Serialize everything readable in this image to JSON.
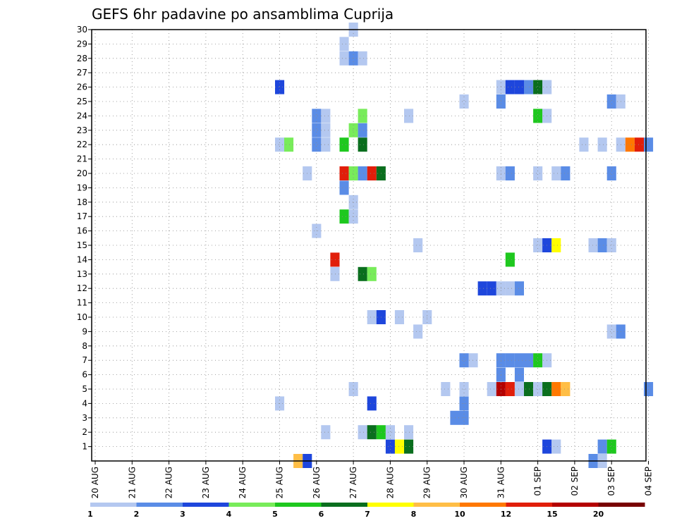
{
  "chart_data": {
    "type": "heatmap",
    "title": "GEFS 6hr padavine po ansamblima Cuprija",
    "xlabel": "",
    "ylabel": "",
    "x_tick_labels": [
      "20 AUG",
      "21 AUG",
      "22 AUG",
      "23 AUG",
      "24 AUG",
      "25 AUG",
      "26 AUG",
      "27 AUG",
      "28 AUG",
      "29 AUG",
      "30 AUG",
      "31 AUG",
      "01 SEP",
      "02 SEP",
      "03 SEP",
      "04 SEP"
    ],
    "y_tick_labels": [
      "1",
      "2",
      "3",
      "4",
      "5",
      "6",
      "7",
      "8",
      "9",
      "10",
      "11",
      "12",
      "13",
      "14",
      "15",
      "16",
      "17",
      "18",
      "19",
      "20",
      "21",
      "22",
      "23",
      "24",
      "25",
      "26",
      "27",
      "28",
      "29",
      "30"
    ],
    "xlim_days": [
      0,
      15
    ],
    "ylim_members": [
      0,
      30
    ],
    "grid": true,
    "colorbar": {
      "labels": [
        "1",
        "2",
        "3",
        "4",
        "5",
        "6",
        "7",
        "8",
        "10",
        "12",
        "15",
        "20"
      ],
      "colors": [
        "#b4c8f0",
        "#5a8ce6",
        "#1e46dc",
        "#78ec5a",
        "#1ec81e",
        "#0a6e1e",
        "#ffff00",
        "#ffbe46",
        "#ff7800",
        "#e11e0a",
        "#b40000",
        "#780000"
      ]
    },
    "cells": [
      [
        7.0,
        30,
        1
      ],
      [
        6.75,
        29,
        1
      ],
      [
        6.75,
        28,
        1
      ],
      [
        7.0,
        28,
        2
      ],
      [
        7.25,
        28,
        1
      ],
      [
        5.0,
        26,
        3
      ],
      [
        11.0,
        26,
        1
      ],
      [
        11.25,
        26,
        3
      ],
      [
        11.5,
        26,
        3
      ],
      [
        11.75,
        26,
        2
      ],
      [
        12.0,
        26,
        6
      ],
      [
        12.25,
        26,
        1
      ],
      [
        10.0,
        25,
        1
      ],
      [
        11.0,
        25,
        2
      ],
      [
        14.0,
        25,
        2
      ],
      [
        14.25,
        25,
        1
      ],
      [
        6.0,
        24,
        2
      ],
      [
        6.25,
        24,
        1
      ],
      [
        7.25,
        24,
        4
      ],
      [
        8.5,
        24,
        1
      ],
      [
        12.0,
        24,
        5
      ],
      [
        12.25,
        24,
        1
      ],
      [
        6.0,
        23,
        2
      ],
      [
        6.25,
        23,
        1
      ],
      [
        7.0,
        23,
        4
      ],
      [
        7.25,
        23,
        2
      ],
      [
        5.0,
        22,
        1
      ],
      [
        5.25,
        22,
        4
      ],
      [
        6.0,
        22,
        2
      ],
      [
        6.25,
        22,
        1
      ],
      [
        6.75,
        22,
        5
      ],
      [
        7.25,
        22,
        6
      ],
      [
        13.25,
        22,
        1
      ],
      [
        13.75,
        22,
        1
      ],
      [
        14.25,
        22,
        1
      ],
      [
        14.5,
        22,
        9
      ],
      [
        14.75,
        22,
        10
      ],
      [
        15.0,
        22,
        2
      ],
      [
        5.75,
        20,
        1
      ],
      [
        6.75,
        20,
        10
      ],
      [
        7.0,
        20,
        4
      ],
      [
        7.25,
        20,
        2
      ],
      [
        7.5,
        20,
        10
      ],
      [
        7.75,
        20,
        6
      ],
      [
        11.0,
        20,
        1
      ],
      [
        11.25,
        20,
        2
      ],
      [
        12.0,
        20,
        1
      ],
      [
        12.5,
        20,
        1
      ],
      [
        12.75,
        20,
        2
      ],
      [
        14.0,
        20,
        2
      ],
      [
        6.75,
        19,
        2
      ],
      [
        7.0,
        18,
        1
      ],
      [
        6.75,
        17,
        5
      ],
      [
        7.0,
        17,
        1
      ],
      [
        6.0,
        16,
        1
      ],
      [
        8.75,
        15,
        1
      ],
      [
        12.0,
        15,
        1
      ],
      [
        12.25,
        15,
        3
      ],
      [
        12.5,
        15,
        7
      ],
      [
        13.5,
        15,
        1
      ],
      [
        13.75,
        15,
        2
      ],
      [
        14.0,
        15,
        1
      ],
      [
        6.5,
        14,
        10
      ],
      [
        11.25,
        14,
        5
      ],
      [
        6.5,
        13,
        1
      ],
      [
        7.25,
        13,
        6
      ],
      [
        7.5,
        13,
        4
      ],
      [
        10.5,
        12,
        3
      ],
      [
        10.75,
        12,
        3
      ],
      [
        11.0,
        12,
        1
      ],
      [
        11.25,
        12,
        1
      ],
      [
        11.5,
        12,
        2
      ],
      [
        7.5,
        10,
        1
      ],
      [
        7.75,
        10,
        3
      ],
      [
        8.25,
        10,
        1
      ],
      [
        9.0,
        10,
        1
      ],
      [
        8.75,
        9,
        1
      ],
      [
        14.0,
        9,
        1
      ],
      [
        14.25,
        9,
        2
      ],
      [
        10.0,
        7,
        2
      ],
      [
        10.25,
        7,
        1
      ],
      [
        11.0,
        7,
        2
      ],
      [
        11.25,
        7,
        2
      ],
      [
        11.5,
        7,
        2
      ],
      [
        11.75,
        7,
        2
      ],
      [
        12.0,
        7,
        5
      ],
      [
        12.25,
        7,
        1
      ],
      [
        11.0,
        6,
        2
      ],
      [
        11.5,
        6,
        2
      ],
      [
        7.0,
        5,
        1
      ],
      [
        9.5,
        5,
        1
      ],
      [
        10.0,
        5,
        1
      ],
      [
        10.75,
        5,
        1
      ],
      [
        11.0,
        5,
        11
      ],
      [
        11.25,
        5,
        10
      ],
      [
        11.5,
        5,
        1
      ],
      [
        11.75,
        5,
        6
      ],
      [
        12.0,
        5,
        1
      ],
      [
        12.25,
        5,
        6
      ],
      [
        12.5,
        5,
        9
      ],
      [
        12.75,
        5,
        8
      ],
      [
        15.0,
        5,
        2
      ],
      [
        5.0,
        4,
        1
      ],
      [
        7.5,
        4,
        3
      ],
      [
        10.0,
        4,
        2
      ],
      [
        9.75,
        3,
        2
      ],
      [
        10.0,
        3,
        2
      ],
      [
        6.25,
        2,
        1
      ],
      [
        7.25,
        2,
        1
      ],
      [
        7.5,
        2,
        6
      ],
      [
        7.75,
        2,
        5
      ],
      [
        8.0,
        2,
        1
      ],
      [
        8.5,
        2,
        1
      ],
      [
        8.0,
        1,
        3
      ],
      [
        8.25,
        1,
        7
      ],
      [
        8.5,
        1,
        6
      ],
      [
        12.25,
        1,
        3
      ],
      [
        12.5,
        1,
        1
      ],
      [
        13.75,
        1,
        2
      ],
      [
        14.0,
        1,
        5
      ],
      [
        5.5,
        0,
        8
      ],
      [
        5.75,
        0,
        3
      ],
      [
        13.5,
        0,
        2
      ],
      [
        13.75,
        0,
        1
      ]
    ]
  }
}
